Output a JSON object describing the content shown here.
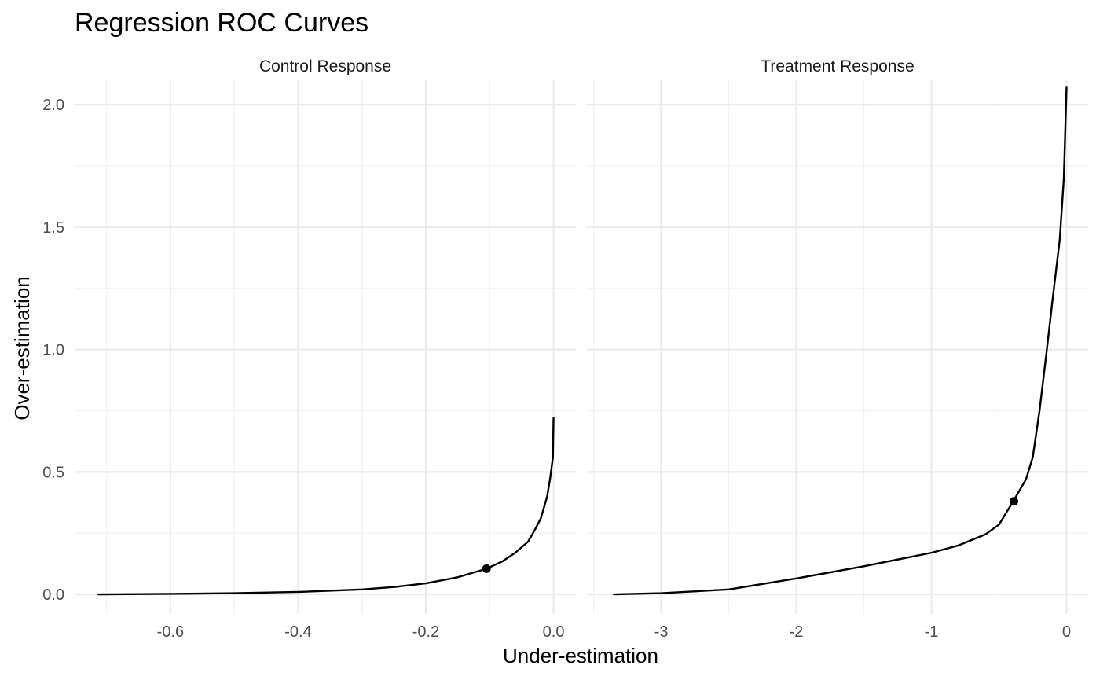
{
  "chart_data": {
    "type": "line",
    "title": "Regression ROC Curves",
    "xlabel": "Under-estimation",
    "ylabel": "Over-estimation",
    "grid": true,
    "y_ticks": [
      "0.0",
      "0.5",
      "1.0",
      "1.5",
      "2.0"
    ],
    "y_tick_values": [
      0,
      0.5,
      1.0,
      1.5,
      2.0
    ],
    "ylim": [
      -0.08,
      2.1
    ],
    "panels": [
      {
        "label": "Control Response",
        "xlim": [
          -0.75,
          0.035
        ],
        "x_ticks": [
          "-0.6",
          "-0.4",
          "-0.2",
          "0.0"
        ],
        "x_tick_values": [
          -0.6,
          -0.4,
          -0.2,
          0.0
        ],
        "x_minor": [
          -0.7,
          -0.5,
          -0.3,
          -0.1
        ],
        "curve": {
          "x": [
            -0.713,
            -0.6,
            -0.5,
            -0.4,
            -0.3,
            -0.25,
            -0.2,
            -0.15,
            -0.105,
            -0.08,
            -0.06,
            -0.04,
            -0.03,
            -0.02,
            -0.01,
            -0.005,
            -0.001,
            0.0
          ],
          "y": [
            0.0,
            0.002,
            0.005,
            0.01,
            0.02,
            0.03,
            0.045,
            0.07,
            0.105,
            0.135,
            0.17,
            0.215,
            0.26,
            0.31,
            0.4,
            0.48,
            0.56,
            0.72
          ]
        },
        "point": {
          "x": -0.105,
          "y": 0.105
        }
      },
      {
        "label": "Treatment Response",
        "xlim": [
          -3.55,
          0.16
        ],
        "x_ticks": [
          "-3",
          "-2",
          "-1",
          "0"
        ],
        "x_tick_values": [
          -3,
          -2,
          -1,
          0
        ],
        "x_minor": [
          -3.5,
          -2.5,
          -1.5,
          -0.5
        ],
        "curve": {
          "x": [
            -3.35,
            -3.0,
            -2.5,
            -2.0,
            -1.5,
            -1.0,
            -0.8,
            -0.6,
            -0.5,
            -0.4,
            -0.3,
            -0.25,
            -0.2,
            -0.15,
            -0.1,
            -0.05,
            -0.02,
            0.0
          ],
          "y": [
            0.0,
            0.005,
            0.02,
            0.065,
            0.115,
            0.17,
            0.2,
            0.245,
            0.285,
            0.375,
            0.47,
            0.56,
            0.75,
            0.98,
            1.22,
            1.45,
            1.7,
            2.07
          ]
        },
        "point": {
          "x": -0.39,
          "y": 0.38
        }
      }
    ]
  }
}
